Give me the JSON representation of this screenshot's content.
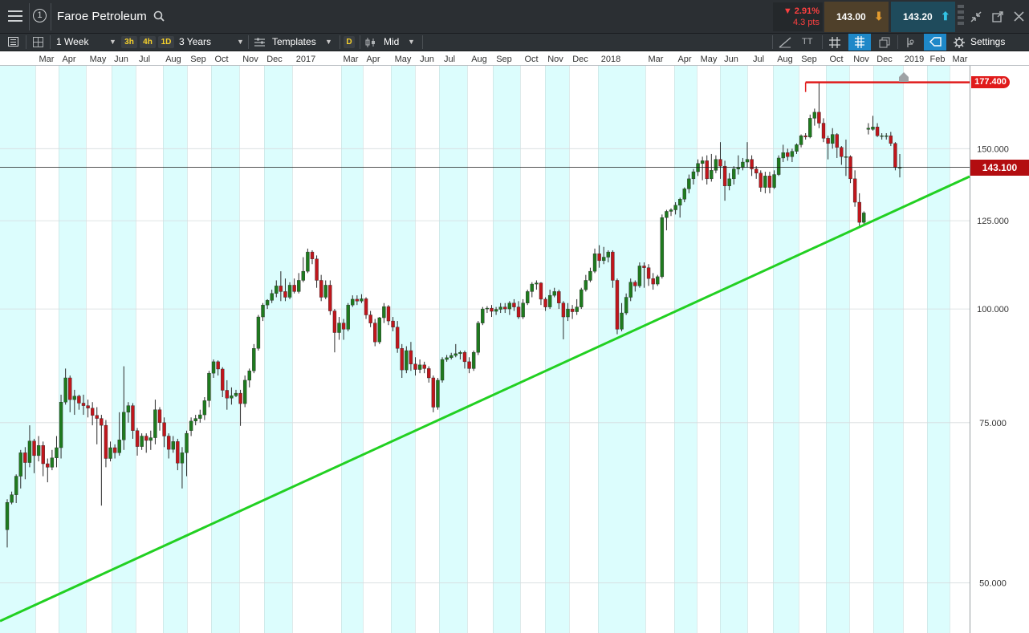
{
  "header": {
    "menu_icon": "hamburger-icon",
    "link_badge": "1",
    "instrument_name": "Faroe Petroleum",
    "search_icon": "search-icon",
    "change_percent": "▼ 2.91%",
    "change_points": "4.3 pts",
    "sell_price": "143.00",
    "buy_price": "143.20",
    "collapse_icon": "collapse-icon",
    "popout_icon": "popout-icon",
    "close_icon": "close-icon"
  },
  "toolbar": {
    "interval": "1 Week",
    "quick_3h": "3h",
    "quick_4h": "4h",
    "quick_1d": "1D",
    "range": "3 Years",
    "templates": "Templates",
    "d_badge": "D",
    "price_type": "Mid",
    "tt_label": "TT",
    "settings": "Settings"
  },
  "colors": {
    "up": "#1e7a1e",
    "down": "#c0161c",
    "trendline": "#22d022",
    "high_line": "#e01b1b",
    "band": "#dcfdfd"
  },
  "chart_data": {
    "type": "candlestick",
    "y_scale": "log",
    "ylim": [
      44.5,
      185
    ],
    "y_ticks": [
      "150.000",
      "125.000",
      "100.000",
      "75.000",
      "50.000"
    ],
    "x_ticks": [
      "Mar",
      "Apr",
      "May",
      "Jun",
      "Jul",
      "Aug",
      "Sep",
      "Oct",
      "Nov",
      "Dec",
      "2017",
      "Mar",
      "Apr",
      "May",
      "Jun",
      "Jul",
      "Aug",
      "Sep",
      "Oct",
      "Nov",
      "Dec",
      "2018",
      "Mar",
      "Apr",
      "May",
      "Jun",
      "Jul",
      "Aug",
      "Sep",
      "Oct",
      "Nov",
      "Dec",
      "2019",
      "Feb",
      "Mar"
    ],
    "current_price": 143.1,
    "current_price_label": "143.100",
    "high_price": 177.4,
    "high_price_label": "177.400",
    "trendline": [
      [
        0,
        45.4
      ],
      [
        1208,
        139.8
      ]
    ],
    "candles": [
      [
        57.2,
        61.3,
        54.7,
        61.8
      ],
      [
        61.3,
        62.5,
        61.0,
        63.0
      ],
      [
        62.5,
        65.5,
        61.2,
        65.8
      ],
      [
        65.5,
        69.5,
        63.5,
        70.0
      ],
      [
        69.5,
        67.8,
        65.0,
        70.5
      ],
      [
        67.8,
        71.6,
        67.0,
        74.5
      ],
      [
        71.6,
        69.0,
        66.0,
        72.0
      ],
      [
        69.0,
        70.8,
        68.0,
        72.5
      ],
      [
        70.8,
        67.6,
        65.5,
        71.5
      ],
      [
        67.6,
        67.0,
        64.5,
        68.5
      ],
      [
        67.0,
        68.6,
        66.5,
        70.0
      ],
      [
        68.6,
        70.4,
        67.0,
        72.5
      ],
      [
        70.4,
        79.0,
        68.5,
        80.5
      ],
      [
        79.0,
        84.0,
        78.5,
        86.0
      ],
      [
        84.0,
        79.5,
        77.0,
        84.5
      ],
      [
        79.5,
        80.2,
        76.5,
        81.5
      ],
      [
        80.2,
        78.8,
        77.5,
        80.5
      ],
      [
        78.8,
        78.3,
        76.5,
        80.5
      ],
      [
        78.3,
        77.8,
        76.0,
        79.5
      ],
      [
        77.8,
        76.4,
        74.5,
        79.0
      ],
      [
        76.4,
        75.8,
        71.0,
        78.0
      ],
      [
        75.8,
        74.5,
        60.8,
        76.5
      ],
      [
        74.5,
        68.5,
        67.0,
        75.5
      ],
      [
        68.5,
        70.4,
        68.0,
        71.5
      ],
      [
        70.4,
        69.5,
        68.5,
        71.0
      ],
      [
        69.5,
        71.8,
        69.0,
        77.0
      ],
      [
        71.8,
        77.0,
        70.0,
        86.5
      ],
      [
        77.0,
        78.3,
        75.0,
        79.0
      ],
      [
        78.3,
        73.5,
        72.0,
        78.8
      ],
      [
        73.5,
        70.6,
        69.0,
        74.0
      ],
      [
        70.6,
        72.5,
        70.0,
        73.0
      ],
      [
        72.5,
        71.7,
        69.5,
        73.0
      ],
      [
        71.7,
        72.2,
        70.0,
        73.5
      ],
      [
        72.2,
        77.5,
        71.0,
        79.5
      ],
      [
        77.5,
        75.0,
        73.5,
        78.0
      ],
      [
        75.0,
        72.5,
        70.5,
        76.0
      ],
      [
        72.5,
        70.1,
        68.5,
        73.0
      ],
      [
        70.1,
        71.5,
        69.5,
        72.5
      ],
      [
        71.5,
        67.7,
        66.5,
        72.0
      ],
      [
        67.7,
        69.5,
        63.5,
        70.5
      ],
      [
        69.5,
        73.0,
        65.5,
        73.5
      ],
      [
        73.5,
        75.3,
        72.5,
        76.0
      ],
      [
        75.3,
        75.8,
        74.5,
        76.5
      ],
      [
        75.8,
        76.5,
        75.0,
        77.5
      ],
      [
        76.5,
        79.3,
        75.5,
        80.0
      ],
      [
        79.3,
        85.0,
        78.0,
        85.5
      ],
      [
        85.0,
        87.5,
        84.0,
        88.0
      ],
      [
        87.5,
        85.9,
        84.5,
        87.8
      ],
      [
        85.9,
        81.4,
        80.0,
        86.3
      ],
      [
        81.4,
        79.8,
        77.5,
        83.5
      ],
      [
        79.8,
        80.3,
        78.5,
        82.0
      ],
      [
        80.3,
        80.8,
        80.0,
        81.5
      ],
      [
        80.8,
        78.7,
        74.4,
        81.5
      ],
      [
        78.7,
        83.5,
        78.0,
        84.5
      ],
      [
        83.5,
        85.5,
        82.0,
        86.0
      ],
      [
        85.5,
        90.5,
        85.0,
        91.5
      ],
      [
        90.5,
        98.0,
        90.0,
        98.5
      ],
      [
        98.0,
        101.0,
        97.0,
        101.5
      ],
      [
        101.0,
        102.2,
        100.0,
        102.5
      ],
      [
        102.2,
        104.0,
        101.5,
        105.0
      ],
      [
        104.0,
        106.0,
        103.0,
        107.5
      ],
      [
        106.0,
        104.5,
        102.0,
        110.0
      ],
      [
        104.5,
        103.0,
        102.0,
        108.0
      ],
      [
        103.0,
        106.2,
        102.5,
        107.0
      ],
      [
        106.2,
        104.5,
        104.0,
        108.0
      ],
      [
        104.5,
        107.5,
        104.0,
        109.5
      ],
      [
        107.5,
        110.0,
        107.0,
        114.0
      ],
      [
        110.0,
        115.5,
        109.5,
        116.5
      ],
      [
        115.5,
        113.5,
        112.0,
        116.0
      ],
      [
        113.5,
        107.5,
        105.5,
        114.5
      ],
      [
        107.5,
        103.0,
        102.0,
        109.0
      ],
      [
        103.0,
        106.2,
        102.5,
        107.5
      ],
      [
        106.2,
        99.5,
        98.5,
        107.5
      ],
      [
        99.5,
        94.2,
        89.6,
        100.0
      ],
      [
        94.2,
        96.5,
        92.5,
        98.0
      ],
      [
        96.5,
        95.0,
        92.5,
        97.5
      ],
      [
        95.0,
        101.0,
        94.5,
        101.5
      ],
      [
        101.0,
        102.5,
        100.5,
        103.5
      ],
      [
        102.5,
        102.0,
        101.0,
        103.5
      ],
      [
        102.0,
        102.6,
        101.5,
        103.8
      ],
      [
        102.6,
        98.5,
        97.5,
        103.0
      ],
      [
        98.5,
        96.5,
        95.5,
        99.5
      ],
      [
        96.5,
        92.0,
        91.0,
        97.5
      ],
      [
        92.0,
        97.8,
        91.5,
        98.0
      ],
      [
        97.8,
        100.6,
        96.5,
        101.5
      ],
      [
        100.6,
        97.0,
        96.0,
        101.0
      ],
      [
        97.0,
        95.5,
        94.5,
        98.0
      ],
      [
        95.5,
        90.5,
        89.5,
        97.0
      ],
      [
        90.5,
        85.7,
        84.0,
        91.5
      ],
      [
        85.7,
        90.0,
        85.0,
        91.0
      ],
      [
        90.0,
        87.0,
        85.5,
        92.0
      ],
      [
        87.0,
        85.8,
        84.5,
        88.5
      ],
      [
        85.8,
        86.8,
        85.0,
        88.0
      ],
      [
        86.8,
        86.0,
        85.0,
        87.5
      ],
      [
        86.0,
        84.0,
        83.0,
        86.5
      ],
      [
        84.0,
        78.0,
        77.0,
        84.5
      ],
      [
        78.0,
        83.5,
        77.5,
        84.0
      ],
      [
        83.5,
        88.0,
        83.0,
        88.5
      ],
      [
        88.0,
        88.4,
        87.5,
        89.0
      ],
      [
        88.4,
        88.9,
        88.0,
        89.5
      ],
      [
        88.9,
        89.3,
        88.5,
        91.5
      ],
      [
        89.3,
        89.6,
        88.0,
        90.0
      ],
      [
        89.6,
        87.5,
        86.0,
        90.0
      ],
      [
        87.5,
        86.0,
        85.0,
        88.5
      ],
      [
        86.0,
        89.6,
        85.5,
        90.0
      ],
      [
        89.6,
        96.5,
        89.0,
        97.0
      ],
      [
        96.5,
        100.0,
        96.0,
        100.5
      ],
      [
        100.0,
        100.2,
        99.0,
        100.7
      ],
      [
        100.2,
        99.4,
        98.0,
        101.0
      ],
      [
        99.4,
        99.9,
        98.5,
        100.5
      ],
      [
        99.9,
        100.5,
        99.0,
        101.5
      ],
      [
        100.5,
        100.0,
        99.0,
        101.5
      ],
      [
        100.0,
        101.5,
        98.5,
        102.0
      ],
      [
        101.5,
        100.5,
        99.5,
        102.5
      ],
      [
        100.5,
        98.0,
        97.5,
        102.0
      ],
      [
        98.0,
        101.5,
        97.5,
        102.5
      ],
      [
        101.5,
        104.5,
        101.0,
        105.0
      ],
      [
        104.5,
        106.5,
        103.0,
        107.0
      ],
      [
        106.5,
        106.8,
        105.0,
        107.5
      ],
      [
        106.8,
        102.5,
        101.0,
        107.0
      ],
      [
        102.5,
        100.5,
        99.5,
        103.0
      ],
      [
        100.5,
        103.5,
        100.0,
        105.0
      ],
      [
        103.5,
        104.5,
        103.0,
        105.5
      ],
      [
        104.5,
        101.5,
        100.0,
        105.0
      ],
      [
        101.5,
        98.0,
        92.6,
        102.0
      ],
      [
        98.0,
        100.0,
        97.0,
        101.5
      ],
      [
        100.0,
        99.3,
        97.5,
        101.0
      ],
      [
        99.3,
        100.5,
        98.5,
        102.5
      ],
      [
        100.5,
        105.0,
        100.0,
        105.5
      ],
      [
        105.0,
        107.5,
        104.5,
        109.0
      ],
      [
        107.5,
        110.0,
        107.0,
        111.0
      ],
      [
        110.0,
        115.0,
        109.5,
        116.5
      ],
      [
        115.0,
        113.0,
        111.0,
        117.5
      ],
      [
        113.0,
        114.0,
        112.0,
        117.0
      ],
      [
        114.0,
        115.5,
        112.5,
        116.0
      ],
      [
        115.5,
        107.5,
        105.5,
        116.0
      ],
      [
        107.5,
        95.0,
        93.8,
        108.0
      ],
      [
        95.0,
        99.0,
        94.5,
        101.5
      ],
      [
        99.0,
        103.0,
        98.5,
        104.0
      ],
      [
        103.0,
        107.0,
        102.0,
        108.0
      ],
      [
        107.0,
        106.0,
        104.5,
        107.5
      ],
      [
        106.0,
        111.5,
        105.5,
        112.5
      ],
      [
        111.5,
        111.0,
        105.5,
        112.5
      ],
      [
        111.0,
        108.0,
        106.0,
        112.0
      ],
      [
        108.0,
        106.5,
        105.0,
        109.5
      ],
      [
        106.5,
        108.5,
        106.0,
        109.0
      ],
      [
        108.5,
        126.0,
        108.0,
        127.0
      ],
      [
        126.0,
        128.0,
        122.0,
        128.5
      ],
      [
        128.0,
        128.5,
        126.5,
        129.0
      ],
      [
        128.5,
        130.0,
        127.0,
        131.0
      ],
      [
        130.0,
        132.0,
        126.0,
        132.5
      ],
      [
        132.0,
        135.5,
        131.0,
        136.0
      ],
      [
        135.5,
        139.0,
        134.0,
        140.5
      ],
      [
        139.0,
        141.5,
        137.0,
        142.5
      ],
      [
        141.5,
        144.5,
        140.0,
        146.0
      ],
      [
        144.5,
        145.5,
        138.5,
        147.0
      ],
      [
        145.5,
        139.0,
        137.0,
        147.5
      ],
      [
        139.0,
        142.0,
        138.0,
        148.0
      ],
      [
        142.0,
        146.0,
        141.0,
        147.5
      ],
      [
        146.0,
        143.5,
        139.0,
        152.5
      ],
      [
        143.5,
        136.5,
        131.5,
        145.5
      ],
      [
        136.5,
        139.0,
        135.0,
        141.0
      ],
      [
        139.0,
        142.5,
        137.0,
        143.5
      ],
      [
        142.5,
        143.0,
        140.5,
        147.5
      ],
      [
        143.0,
        145.0,
        142.0,
        146.5
      ],
      [
        145.0,
        146.0,
        143.0,
        152.5
      ],
      [
        146.0,
        142.5,
        140.0,
        147.5
      ],
      [
        142.5,
        141.0,
        139.0,
        143.5
      ],
      [
        141.0,
        136.0,
        134.5,
        142.0
      ],
      [
        136.0,
        140.0,
        134.0,
        141.5
      ],
      [
        140.0,
        136.0,
        134.0,
        141.5
      ],
      [
        136.0,
        140.5,
        135.5,
        142.0
      ],
      [
        140.5,
        146.5,
        140.0,
        147.5
      ],
      [
        146.5,
        148.5,
        145.0,
        151.5
      ],
      [
        148.5,
        147.0,
        145.5,
        150.0
      ],
      [
        147.0,
        149.0,
        145.0,
        150.0
      ],
      [
        149.0,
        151.5,
        148.0,
        152.0
      ],
      [
        151.5,
        155.0,
        150.5,
        155.5
      ],
      [
        155.0,
        154.5,
        153.5,
        156.0
      ],
      [
        154.5,
        162.0,
        154.0,
        163.5
      ],
      [
        162.0,
        164.5,
        159.0,
        166.0
      ],
      [
        164.5,
        160.0,
        158.0,
        177.4
      ],
      [
        160.0,
        154.0,
        152.5,
        162.0
      ],
      [
        154.0,
        152.0,
        146.0,
        155.0
      ],
      [
        152.0,
        155.5,
        150.0,
        158.0
      ],
      [
        155.5,
        150.5,
        146.5,
        156.0
      ],
      [
        150.5,
        147.0,
        144.0,
        151.0
      ],
      [
        147.0,
        147.0,
        140.0,
        153.5
      ],
      [
        147.0,
        139.0,
        137.5,
        147.5
      ],
      [
        139.0,
        131.0,
        129.5,
        142.0
      ],
      [
        131.0,
        124.5,
        123.0,
        134.0
      ],
      [
        124.5,
        127.5,
        124.0,
        128.0
      ],
      [
        157.5,
        158.0,
        155.5,
        160.0
      ],
      [
        157.5,
        158.5,
        157.0,
        163.0
      ],
      [
        158.5,
        155.0,
        154.5,
        160.0
      ],
      [
        155.0,
        155.0,
        153.5,
        156.0
      ],
      [
        155.0,
        155.0,
        153.5,
        156.0
      ],
      [
        155.0,
        152.0,
        151.0,
        156.5
      ],
      [
        152.0,
        143.0,
        142.0,
        152.5
      ],
      [
        143.0,
        143.1,
        139.5,
        148.0
      ]
    ]
  }
}
